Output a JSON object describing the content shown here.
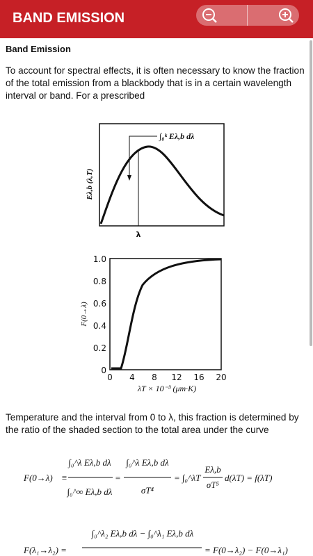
{
  "header": {
    "title": "BAND EMISSION"
  },
  "content": {
    "heading": "Band Emission",
    "paragraph_1": "To account for spectral effects, it is often necessary to know the fraction of the total emission from a blackbody that is in a certain wavelength interval or band. For a prescribed",
    "paragraph_2": "Temperature and the interval from 0 to λ, this fraction is determined by the ratio of the shaded section to the total area under the curve"
  },
  "figure_1": {
    "y_label": "Eλ,b (λ,T)",
    "annotation": "∫₀ᵏ Eλ,b dλ",
    "x_label": "λ"
  },
  "figure_2": {
    "y_label": "F(0→λ)",
    "x_label": "λT × 10⁻³ (μm·K)",
    "yticks": [
      "1.0",
      "0.8",
      "0.6",
      "0.4",
      "0.2",
      "0"
    ],
    "xticks": [
      "0",
      "4",
      "8",
      "12",
      "16",
      "20"
    ]
  },
  "equation_1": {
    "lhs": "F(0→λ)",
    "equiv": "≡",
    "frac_1_num": "∫₀^λ Eλ,b dλ",
    "frac_1_den": "∫₀^∞ Eλ,b dλ",
    "eq_1": "=",
    "frac_2_num": "∫₀^λ Eλ,b dλ",
    "frac_2_den": "σT⁴",
    "eq_2": "=",
    "integral": "∫₀^λT",
    "frac_3_num": "Eλ,b",
    "frac_3_den": "σT⁵",
    "rhs": "d(λT) = f(λT)"
  },
  "equation_2": {
    "lhs": "F(λ₁→λ₂) =",
    "num": "∫₀^λ₂ Eλ,b dλ − ∫₀^λ₁ Eλ,b dλ",
    "rhs": "= F(0→λ₂) − F(0→λ₁)"
  }
}
